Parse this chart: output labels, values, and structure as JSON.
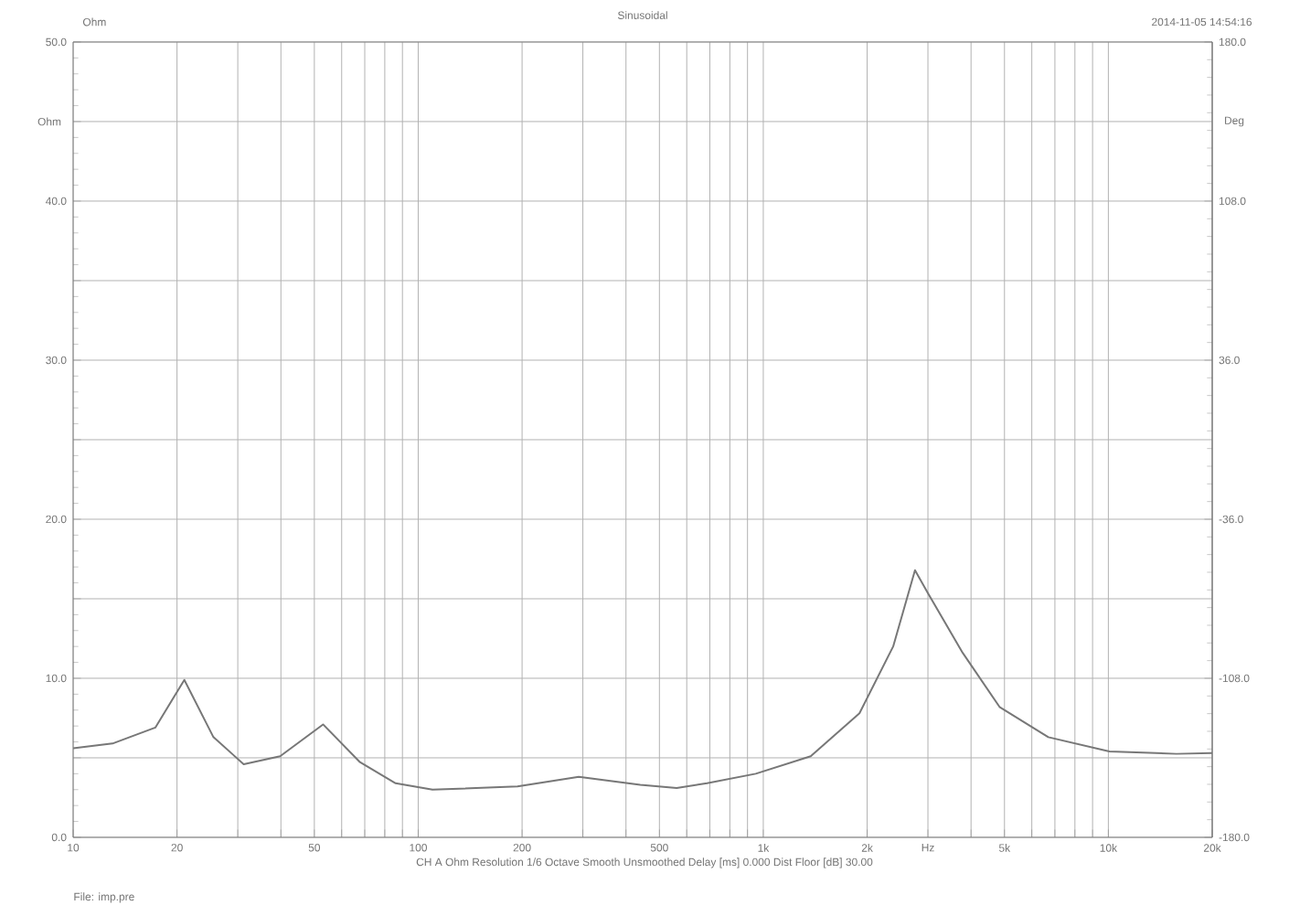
{
  "chart_data": {
    "type": "line",
    "title": "Sinusoidal",
    "ylabel": "Ohm",
    "y2label": "Deg",
    "annotations": [
      "Ohm",
      "2014-11-05 14:54:16",
      "CH A  Ohm  Resolution 1/6 Octave  Smooth Unsmoothed  Delay [ms] 0.000  Dist Floor [dB] 30.00",
      "File: imp.pre"
    ],
    "x": [
      10,
      13,
      17.3,
      21,
      25.5,
      31.2,
      39.8,
      53,
      67.6,
      86,
      110,
      194,
      292,
      440,
      561,
      687,
      951,
      1372,
      1900,
      2379,
      2752,
      2973,
      3784,
      4838,
      6700,
      10070,
      15750,
      20000
    ],
    "values": [
      5.6,
      5.9,
      6.9,
      9.9,
      6.3,
      4.6,
      5.1,
      7.1,
      4.75,
      3.4,
      3.0,
      3.2,
      3.8,
      3.3,
      3.1,
      3.4,
      4.0,
      5.1,
      7.8,
      12.0,
      16.8,
      15.5,
      11.6,
      8.2,
      6.3,
      5.4,
      5.25,
      5.3
    ],
    "color": "#777777",
    "log": "x",
    "grid": true,
    "xlim": [
      10,
      20000
    ],
    "ylim": [
      0,
      50
    ],
    "y2lim": [
      -180,
      180
    ],
    "xticks": [
      10,
      20,
      {
        "value": 30,
        "label": null
      },
      {
        "value": 40,
        "label": null
      },
      50,
      {
        "value": 60,
        "label": null
      },
      {
        "value": 70,
        "label": null
      },
      {
        "value": 80,
        "label": null
      },
      {
        "value": 90,
        "label": null
      },
      100,
      200,
      {
        "value": 300,
        "label": null
      },
      {
        "value": 400,
        "label": null
      },
      500,
      {
        "value": 600,
        "label": null
      },
      {
        "value": 700,
        "label": null
      },
      {
        "value": 800,
        "label": null
      },
      {
        "value": 900,
        "label": null
      },
      {
        "value": 1000,
        "label": "1k"
      },
      {
        "value": 2000,
        "label": "2k"
      },
      {
        "value": 3000,
        "label": "Hz"
      },
      {
        "value": 4000,
        "label": null
      },
      {
        "value": 5000,
        "label": "5k"
      },
      {
        "value": 6000,
        "label": null
      },
      {
        "value": 7000,
        "label": null
      },
      {
        "value": 8000,
        "label": null
      },
      {
        "value": 9000,
        "label": null
      },
      {
        "value": 10000,
        "label": "10k"
      },
      {
        "value": 20000,
        "label": "20k"
      }
    ],
    "yticks": [
      {
        "value": 0,
        "label": "0.0"
      },
      {
        "value": 5,
        "label": null
      },
      {
        "value": 10,
        "label": "10.0"
      },
      {
        "value": 15,
        "label": null
      },
      {
        "value": 20,
        "label": "20.0"
      },
      {
        "value": 25,
        "label": null
      },
      {
        "value": 30,
        "label": "30.0"
      },
      {
        "value": 35,
        "label": null
      },
      {
        "value": 40,
        "label": "40.0"
      },
      {
        "value": 45,
        "label": null
      },
      {
        "value": 50,
        "label": "50.0"
      }
    ],
    "y2ticks": [
      {
        "value": -180,
        "label": "-180.0"
      },
      {
        "value": -108,
        "label": "-108.0"
      },
      {
        "value": -36,
        "label": "-36.0"
      },
      {
        "value": 36,
        "label": "36.0"
      },
      {
        "value": 108,
        "label": "108.0"
      },
      {
        "value": 180,
        "label": "180.0"
      }
    ]
  }
}
